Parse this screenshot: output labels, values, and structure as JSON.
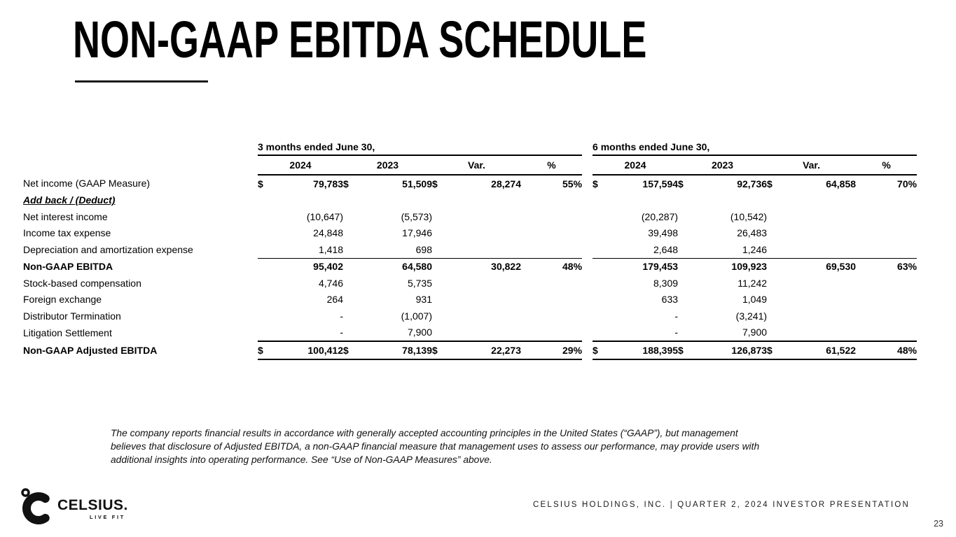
{
  "slide": {
    "title": "NON-GAAP EBITDA SCHEDULE",
    "footer": "CELSIUS HOLDINGS, INC. | QUARTER 2, 2024 INVESTOR PRESENTATION",
    "page_number": "23",
    "disclaimer_lines": [
      "The company reports financial results in accordance with generally accepted accounting principles in the United States (“GAAP”), but management",
      "believes that disclosure of Adjusted EBITDA, a non-GAAP financial measure that management uses to assess our performance, may provide users with",
      "additional insights into operating performance. See “Use of Non-GAAP Measures” above."
    ]
  },
  "logo": {
    "degree_icon": "degree-symbol",
    "brand": "CELSIUS.",
    "tagline": "LIVE FIT"
  },
  "colors": {
    "text": "#000000",
    "background": "#ffffff",
    "rule": "#000000"
  },
  "table": {
    "sections": [
      {
        "heading": "3 months ended June 30,",
        "columns": [
          "2024",
          "2023",
          "Var.",
          "%"
        ]
      },
      {
        "heading": "6 months ended June 30,",
        "columns": [
          "2024",
          "2023",
          "Var.",
          "%"
        ]
      }
    ],
    "rows": [
      {
        "label": "Net income (GAAP Measure)",
        "indent": false,
        "label_bold": false,
        "addback": false,
        "bold": true,
        "rule": null,
        "s3": [
          "$",
          "79,783",
          "$",
          "51,509",
          "$",
          "28,274",
          "55%"
        ],
        "s6": [
          "$",
          "157,594",
          "$",
          "92,736",
          "$",
          "64,858",
          "70%"
        ]
      },
      {
        "label": "Add back / (Deduct)",
        "indent": true,
        "label_bold": true,
        "addback": true,
        "bold": false,
        "rule": null,
        "s3": [
          "",
          "",
          "",
          "",
          "",
          "",
          ""
        ],
        "s6": [
          "",
          "",
          "",
          "",
          "",
          "",
          ""
        ]
      },
      {
        "label": "Net interest income",
        "indent": true,
        "label_bold": false,
        "addback": false,
        "bold": false,
        "rule": null,
        "s3": [
          "",
          "(10,647)",
          "",
          "(5,573)",
          "",
          "",
          ""
        ],
        "s6": [
          "",
          "(20,287)",
          "",
          "(10,542)",
          "",
          "",
          ""
        ]
      },
      {
        "label": "Income tax expense",
        "indent": true,
        "label_bold": false,
        "addback": false,
        "bold": false,
        "rule": null,
        "s3": [
          "",
          "24,848",
          "",
          "17,946",
          "",
          "",
          ""
        ],
        "s6": [
          "",
          "39,498",
          "",
          "26,483",
          "",
          "",
          ""
        ]
      },
      {
        "label": "Depreciation and amortization expense",
        "indent": true,
        "label_bold": false,
        "addback": false,
        "bold": false,
        "rule": "thin",
        "s3": [
          "",
          "1,418",
          "",
          "698",
          "",
          "",
          ""
        ],
        "s6": [
          "",
          "2,648",
          "",
          "1,246",
          "",
          "",
          ""
        ]
      },
      {
        "label": "Non-GAAP EBITDA",
        "indent": true,
        "label_bold": true,
        "addback": false,
        "bold": true,
        "rule": null,
        "s3": [
          "",
          "95,402",
          "",
          "64,580",
          "",
          "30,822",
          "48%"
        ],
        "s6": [
          "",
          "179,453",
          "",
          "109,923",
          "",
          "69,530",
          "63%"
        ]
      },
      {
        "label": "Stock-based compensation",
        "indent": true,
        "label_bold": false,
        "addback": false,
        "bold": false,
        "rule": null,
        "s3": [
          "",
          "4,746",
          "",
          "5,735",
          "",
          "",
          ""
        ],
        "s6": [
          "",
          "8,309",
          "",
          "11,242",
          "",
          "",
          ""
        ]
      },
      {
        "label": "Foreign exchange",
        "indent": true,
        "label_bold": false,
        "addback": false,
        "bold": false,
        "rule": null,
        "s3": [
          "",
          "264",
          "",
          "931",
          "",
          "",
          ""
        ],
        "s6": [
          "",
          "633",
          "",
          "1,049",
          "",
          "",
          ""
        ]
      },
      {
        "label": "Distributor Termination",
        "indent": true,
        "label_bold": false,
        "addback": false,
        "bold": false,
        "rule": null,
        "s3": [
          "",
          "-",
          "",
          "(1,007)",
          "",
          "",
          ""
        ],
        "s6": [
          "",
          "-",
          "",
          "(3,241)",
          "",
          "",
          ""
        ]
      },
      {
        "label": "Litigation Settlement",
        "indent": true,
        "label_bold": false,
        "addback": false,
        "bold": false,
        "rule": "thick",
        "s3": [
          "",
          "-",
          "",
          "7,900",
          "",
          "",
          ""
        ],
        "s6": [
          "",
          "-",
          "",
          "7,900",
          "",
          "",
          ""
        ]
      },
      {
        "label": "Non-GAAP Adjusted EBITDA",
        "indent": false,
        "label_bold": true,
        "addback": false,
        "bold": true,
        "rule": "thick",
        "s3": [
          "$",
          "100,412",
          "$",
          "78,139",
          "$",
          "22,273",
          "29%"
        ],
        "s6": [
          "$",
          "188,395",
          "$",
          "126,873",
          "$",
          "61,522",
          "48%"
        ]
      }
    ]
  }
}
